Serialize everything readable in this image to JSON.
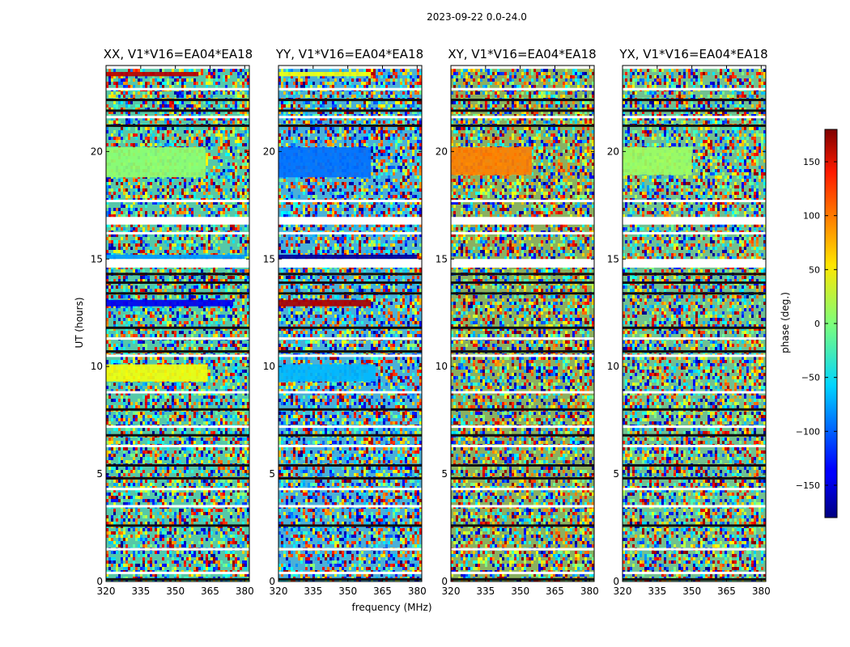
{
  "figure_title": "2023-09-22 0.0-24.0",
  "chart_data": [
    {
      "type": "heatmap",
      "title": "XX, V1*V16=EA04*EA18",
      "xlabel": "frequency (MHz)",
      "ylabel": "UT (hours)",
      "xlim": [
        320,
        382
      ],
      "ylim": [
        0,
        24
      ],
      "xticks": [
        320,
        335,
        350,
        365,
        380
      ],
      "yticks": [
        0,
        5,
        10,
        15,
        20
      ],
      "base_color": "#55c8a8",
      "structured_bands": [
        {
          "t0": 18.8,
          "t1": 20.2,
          "phase": 5,
          "f_cut": 363
        },
        {
          "t0": 9.3,
          "t1": 10.1,
          "phase": 40,
          "f_cut": 364
        },
        {
          "t0": 12.8,
          "t1": 13.1,
          "phase": -140,
          "f_cut": 375
        },
        {
          "t0": 15.0,
          "t1": 15.2,
          "phase": -80,
          "f_cut": 380
        },
        {
          "t0": 23.5,
          "t1": 23.7,
          "phase": 160,
          "f_cut": 360
        }
      ]
    },
    {
      "type": "heatmap",
      "title": "YY, V1*V16=EA04*EA18",
      "xlabel": "frequency (MHz)",
      "ylabel": "",
      "xlim": [
        320,
        382
      ],
      "ylim": [
        0,
        24
      ],
      "xticks": [
        320,
        335,
        350,
        365,
        380
      ],
      "yticks": [
        0,
        5,
        10,
        15,
        20
      ],
      "base_color": "#4ab0d8",
      "structured_bands": [
        {
          "t0": 18.8,
          "t1": 20.2,
          "phase": -95,
          "f_cut": 360
        },
        {
          "t0": 9.3,
          "t1": 10.1,
          "phase": -70,
          "f_cut": 362
        },
        {
          "t0": 12.8,
          "t1": 13.1,
          "phase": 165,
          "f_cut": 360
        },
        {
          "t0": 15.0,
          "t1": 15.2,
          "phase": -170,
          "f_cut": 380
        },
        {
          "t0": 23.5,
          "t1": 23.7,
          "phase": 40,
          "f_cut": 360
        }
      ]
    },
    {
      "type": "heatmap",
      "title": "XY, V1*V16=EA04*EA18",
      "xlabel": "",
      "ylabel": "",
      "xlim": [
        320,
        382
      ],
      "ylim": [
        0,
        24
      ],
      "xticks": [
        320,
        335,
        350,
        365,
        380
      ],
      "yticks": [
        0,
        5,
        10,
        15,
        20
      ],
      "base_color": "#8ab060",
      "structured_bands": [
        {
          "t0": 18.9,
          "t1": 20.2,
          "phase": 90,
          "f_cut": 355
        }
      ]
    },
    {
      "type": "heatmap",
      "title": "YX, V1*V16=EA04*EA18",
      "xlabel": "",
      "ylabel": "",
      "xlim": [
        320,
        382
      ],
      "ylim": [
        0,
        24
      ],
      "xticks": [
        320,
        335,
        350,
        365,
        380
      ],
      "yticks": [
        0,
        5,
        10,
        15,
        20
      ],
      "base_color": "#70c090",
      "structured_bands": [
        {
          "t0": 18.9,
          "t1": 20.2,
          "phase": 10,
          "f_cut": 350
        }
      ]
    }
  ],
  "colorbar": {
    "label": "phase (deg.)",
    "range": [
      -180,
      180
    ],
    "ticks": [
      "150",
      "100",
      "50",
      "0",
      "−50",
      "−100",
      "−150"
    ],
    "tick_values": [
      150,
      100,
      50,
      0,
      -50,
      -100,
      -150
    ],
    "colormap": "jet"
  },
  "blank_rows_hours": [
    0.4,
    1.5,
    3.5,
    4.3,
    6.3,
    7.2,
    8.8,
    10.5,
    11.3,
    14.8,
    16.2,
    16.9,
    17.7,
    21.6,
    22.9,
    23.9
  ],
  "dark_rows_hours": [
    0.1,
    2.6,
    4.8,
    5.4,
    6.8,
    8.0,
    10.7,
    11.8,
    13.4,
    13.9,
    14.3,
    21.2,
    21.9,
    22.4
  ]
}
